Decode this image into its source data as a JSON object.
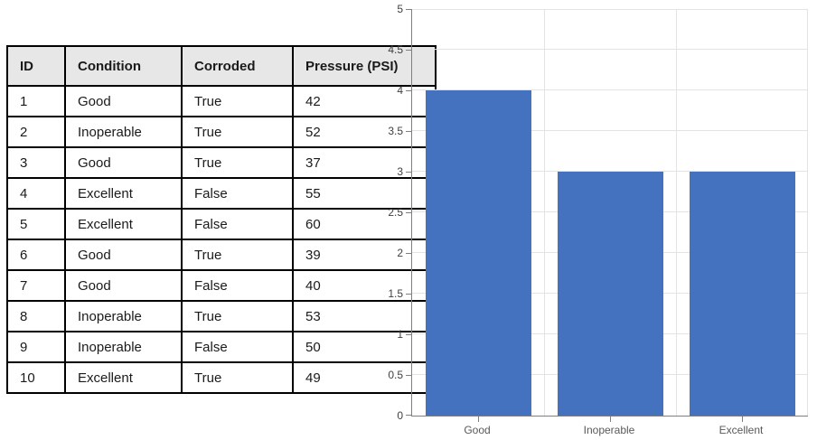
{
  "table": {
    "headers": [
      "ID",
      "Condition",
      "Corroded",
      "Pressure (PSI)"
    ],
    "rows": [
      [
        "1",
        "Good",
        "True",
        "42"
      ],
      [
        "2",
        "Inoperable",
        "True",
        "52"
      ],
      [
        "3",
        "Good",
        "True",
        "37"
      ],
      [
        "4",
        "Excellent",
        "False",
        "55"
      ],
      [
        "5",
        "Excellent",
        "False",
        "60"
      ],
      [
        "6",
        "Good",
        "True",
        "39"
      ],
      [
        "7",
        "Good",
        "False",
        "40"
      ],
      [
        "8",
        "Inoperable",
        "True",
        "53"
      ],
      [
        "9",
        "Inoperable",
        "False",
        "50"
      ],
      [
        "10",
        "Excellent",
        "True",
        "49"
      ]
    ]
  },
  "chart_data": {
    "type": "bar",
    "categories": [
      "Good",
      "Inoperable",
      "Excellent"
    ],
    "values": [
      4,
      3,
      3
    ],
    "title": "",
    "xlabel": "",
    "ylabel": "",
    "ylim": [
      0,
      5
    ],
    "ytick_step": 0.5,
    "grid": true,
    "legend": false,
    "bar_color": "#4472BE",
    "gridline_color": "#E3E3E3",
    "axis_color": "#7f7f7f",
    "ytick_label_color": "#404040",
    "xtick_label_color": "#595959"
  },
  "colors": {
    "page_background": "#FFFFFF",
    "table_border": "#000000",
    "table_header_background": "#E8E7E7"
  }
}
